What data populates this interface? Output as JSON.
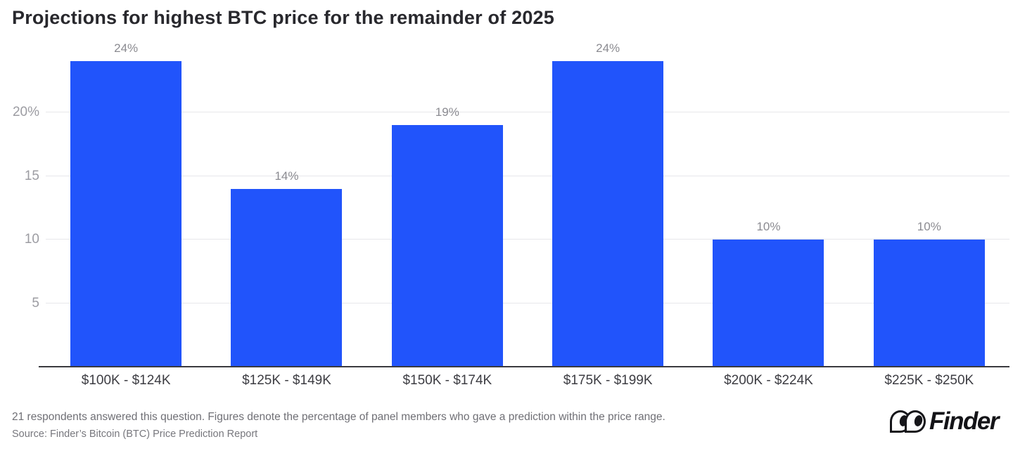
{
  "page": {
    "title": "Projections for highest BTC price for the remainder of 2025"
  },
  "chart_data": {
    "type": "bar",
    "title": "Projections for highest BTC price for the remainder of 2025",
    "categories": [
      "$100K - $124K",
      "$125K - $149K",
      "$150K - $174K",
      "$175K - $199K",
      "$200K - $224K",
      "$225K - $250K"
    ],
    "values": [
      24,
      14,
      19,
      24,
      10,
      10
    ],
    "value_labels": [
      "24%",
      "14%",
      "19%",
      "24%",
      "10%",
      "10%"
    ],
    "xlabel": "",
    "ylabel": "",
    "ylim": [
      0,
      25
    ],
    "y_ticks": [
      {
        "value": 5,
        "label": "5"
      },
      {
        "value": 10,
        "label": "10"
      },
      {
        "value": 15,
        "label": "15"
      },
      {
        "value": 20,
        "label": "20%"
      }
    ],
    "grid": true,
    "legend": false,
    "bar_color": "#2154fb",
    "gridline_color": "#e7e7ea",
    "axis_line_color": "#3a3a3f"
  },
  "footer": {
    "note": "21 respondents answered this question. Figures denote the percentage of panel members who gave a prediction within the price range.",
    "source": "Source: Finder’s Bitcoin (BTC) Price Prediction Report",
    "logo_text": "Finder"
  }
}
